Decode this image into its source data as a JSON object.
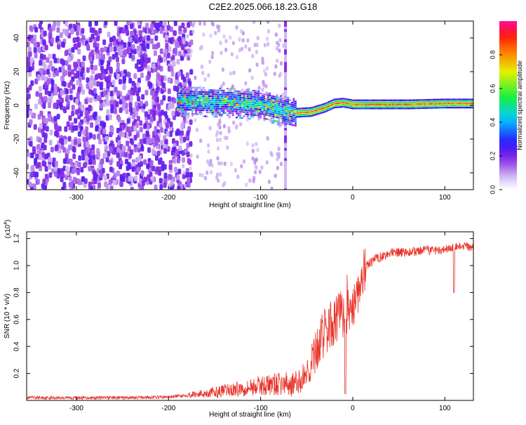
{
  "title": "C2E2.2025.066.18.23.G18",
  "chart_data": [
    {
      "type": "heatmap",
      "name": "spectrogram",
      "xlabel": "Height of straight line (km)",
      "ylabel": "Frequency (Hz)",
      "xlim": [
        -354,
        131
      ],
      "ylim": [
        -50,
        50
      ],
      "xticks": [
        -300,
        -200,
        -100,
        0,
        100
      ],
      "xtick_labels": [
        "-300",
        "-200",
        "-100",
        "0",
        "100"
      ],
      "yticks": [
        -40,
        -20,
        0,
        20,
        40
      ],
      "ytick_labels": [
        "-40",
        "-20",
        "0",
        "20",
        "40"
      ],
      "colorbar": {
        "label": "Normalized spectral amplitude",
        "range": [
          0,
          1
        ],
        "ticks": [
          0.0,
          0.2,
          0.4,
          0.6,
          0.8
        ],
        "tick_labels": [
          "0.0",
          "0.2",
          "0.4",
          "0.6",
          "0.8"
        ]
      },
      "ridge": {
        "height_km": [
          -190,
          -160,
          -130,
          -100,
          -80,
          -60,
          -45,
          -30,
          -20,
          -10,
          0,
          20,
          60,
          100,
          131
        ],
        "frequency_hz": [
          3,
          2.5,
          2,
          0.5,
          -2,
          -4.5,
          -4,
          -1.5,
          1,
          1.5,
          0.5,
          0.5,
          0.5,
          1,
          1
        ]
      },
      "noise_region_km": [
        -354,
        -185
      ],
      "spike_km": -73
    },
    {
      "type": "line",
      "name": "snr",
      "xlabel": "Height of straight line (km)",
      "ylabel": "SNR (10 * v/v)",
      "scale_label": "(x10",
      "scale_exponent": "4",
      "scale_close": ")",
      "xlim": [
        -354,
        131
      ],
      "ylim": [
        0,
        1.25
      ],
      "xticks": [
        -300,
        -200,
        -100,
        0,
        100
      ],
      "xtick_labels": [
        "-300",
        "-200",
        "-100",
        "0",
        "100"
      ],
      "yticks": [
        0.2,
        0.4,
        0.6,
        0.8,
        1.0,
        1.2
      ],
      "ytick_labels": [
        "0.2",
        "0.4",
        "0.6",
        "0.8",
        "1.0",
        "1.2"
      ],
      "series": [
        {
          "name": "SNR",
          "color": "#e8332a",
          "x": [
            -354,
            -300,
            -250,
            -200,
            -180,
            -150,
            -120,
            -100,
            -80,
            -60,
            -45,
            -35,
            -25,
            -15,
            -5,
            0,
            5,
            10,
            15,
            25,
            40,
            60,
            80,
            100,
            110,
            120,
            131
          ],
          "y": [
            0.02,
            0.02,
            0.02,
            0.025,
            0.04,
            0.06,
            0.09,
            0.11,
            0.12,
            0.12,
            0.25,
            0.45,
            0.55,
            0.62,
            0.66,
            0.7,
            0.8,
            0.92,
            1.0,
            1.05,
            1.09,
            1.1,
            1.11,
            1.12,
            1.13,
            1.14,
            1.14
          ]
        }
      ],
      "drops": [
        {
          "x": -8,
          "y": 0.05
        },
        {
          "x": 110,
          "y": 0.8
        }
      ]
    }
  ],
  "colors": {
    "axis": "#000000",
    "line": "#e8332a",
    "background": "#ffffff"
  }
}
